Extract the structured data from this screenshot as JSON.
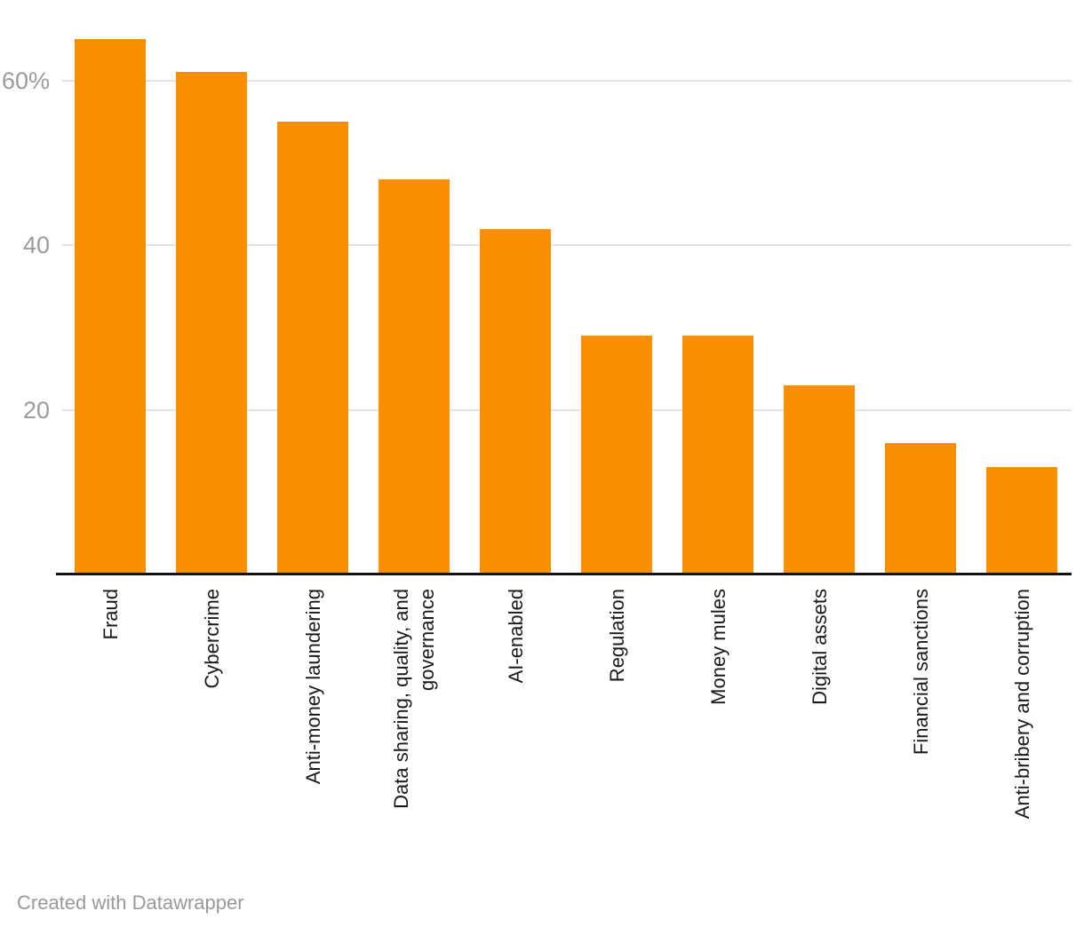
{
  "chart_data": {
    "type": "bar",
    "title": "",
    "xlabel": "",
    "ylabel": "",
    "categories": [
      "Fraud",
      "Cybercrime",
      "Anti-money laundering",
      "Data sharing, quality, and governance",
      "AI-enabled",
      "Regulation",
      "Money mules",
      "Digital assets",
      "Financial sanctions",
      "Anti-bribery and corruption"
    ],
    "label_lines": [
      [
        "Fraud"
      ],
      [
        "Cybercrime"
      ],
      [
        "Anti-money laundering"
      ],
      [
        "Data sharing, quality, and",
        "governance"
      ],
      [
        "AI-enabled"
      ],
      [
        "Regulation"
      ],
      [
        "Money mules"
      ],
      [
        "Digital assets"
      ],
      [
        "Financial sanctions"
      ],
      [
        "Anti-bribery and corruption"
      ]
    ],
    "values": [
      65,
      61,
      55,
      48,
      42,
      29,
      29,
      23,
      16,
      13
    ],
    "unit": "%",
    "ylim": [
      0,
      70
    ],
    "yticks": [
      {
        "value": 20,
        "label": "20"
      },
      {
        "value": 40,
        "label": "40"
      },
      {
        "value": 60,
        "label": "60%"
      }
    ],
    "grid": "horizontal",
    "legend": "none",
    "bar_color": "#F98E00",
    "grid_color": "#E3E3E3",
    "axis_color": "#111111",
    "tick_label_color": "#9B9B9B",
    "category_label_color": "#1A1A1A"
  },
  "footer": {
    "attribution": "Created with Datawrapper"
  }
}
